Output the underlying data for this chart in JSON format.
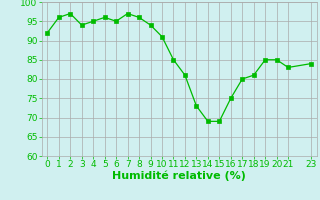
{
  "x": [
    0,
    1,
    2,
    3,
    4,
    5,
    6,
    7,
    8,
    9,
    10,
    11,
    12,
    13,
    14,
    15,
    16,
    17,
    18,
    19,
    20,
    21,
    23
  ],
  "y": [
    92,
    96,
    97,
    94,
    95,
    96,
    95,
    97,
    96,
    94,
    91,
    85,
    81,
    73,
    69,
    69,
    75,
    80,
    81,
    85,
    85,
    83,
    84
  ],
  "line_color": "#00bb00",
  "marker": "s",
  "marker_size": 2.5,
  "bg_color": "#d0f0f0",
  "grid_color": "#aaaaaa",
  "xlabel": "Humidité relative (%)",
  "xlabel_color": "#00bb00",
  "xlabel_fontsize": 8,
  "tick_color": "#00bb00",
  "tick_fontsize": 6.5,
  "ylim": [
    60,
    100
  ],
  "yticks": [
    60,
    65,
    70,
    75,
    80,
    85,
    90,
    95,
    100
  ],
  "xticks": [
    0,
    1,
    2,
    3,
    4,
    5,
    6,
    7,
    8,
    9,
    10,
    11,
    12,
    13,
    14,
    15,
    16,
    17,
    18,
    19,
    20,
    21,
    23
  ],
  "xlim": [
    -0.5,
    23.5
  ]
}
